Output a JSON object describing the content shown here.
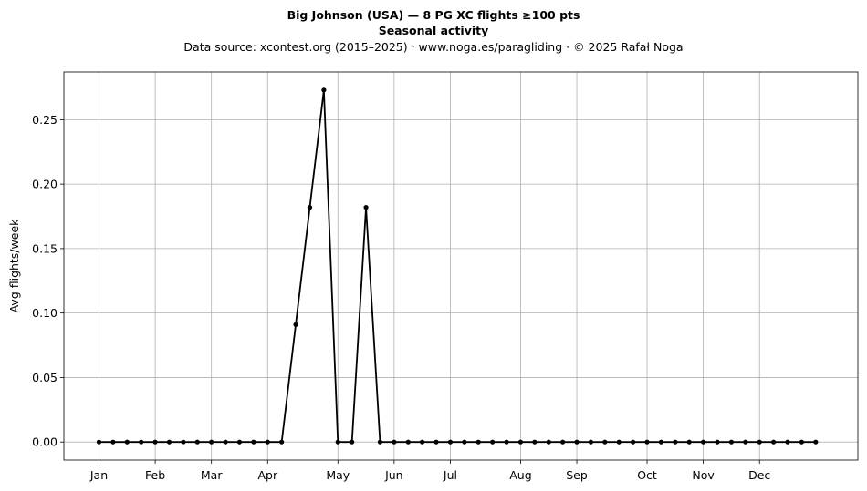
{
  "chart_data": {
    "type": "line",
    "title": "Big Johnson (USA)  —  8 PG XC flights ≥100 pts",
    "subtitle": "Seasonal activity",
    "source_line": "Data source: xcontest.org (2015–2025)  ·  www.noga.es/paragliding  ·  © 2025 Rafał Noga",
    "xlabel": "",
    "ylabel": "Avg flights/week",
    "xlim": [
      -2.5,
      54
    ],
    "ylim": [
      -0.014,
      0.287
    ],
    "grid": true,
    "x_ticks": [
      {
        "label": "Jan",
        "x": 0
      },
      {
        "label": "Feb",
        "x": 4
      },
      {
        "label": "Mar",
        "x": 8
      },
      {
        "label": "Apr",
        "x": 12
      },
      {
        "label": "May",
        "x": 17
      },
      {
        "label": "Jun",
        "x": 21
      },
      {
        "label": "Jul",
        "x": 25
      },
      {
        "label": "Aug",
        "x": 30
      },
      {
        "label": "Sep",
        "x": 34
      },
      {
        "label": "Oct",
        "x": 39
      },
      {
        "label": "Nov",
        "x": 43
      },
      {
        "label": "Dec",
        "x": 47
      }
    ],
    "y_ticks": [
      0,
      0.05,
      0.1,
      0.15,
      0.2,
      0.25
    ],
    "y_tick_labels": [
      "0.00",
      "0.05",
      "0.10",
      "0.15",
      "0.20",
      "0.25"
    ],
    "series": [
      {
        "color": "#000000",
        "x": [
          0,
          1,
          2,
          3,
          4,
          5,
          6,
          7,
          8,
          9,
          10,
          11,
          12,
          13,
          14,
          15,
          16,
          17,
          18,
          19,
          20,
          21,
          22,
          23,
          24,
          25,
          26,
          27,
          28,
          29,
          30,
          31,
          32,
          33,
          34,
          35,
          36,
          37,
          38,
          39,
          40,
          41,
          42,
          43,
          44,
          45,
          46,
          47,
          48,
          49,
          50,
          51
        ],
        "y": [
          0,
          0,
          0,
          0,
          0,
          0,
          0,
          0,
          0,
          0,
          0,
          0,
          0,
          0,
          0.091,
          0.182,
          0.273,
          0,
          0,
          0.182,
          0,
          0,
          0,
          0,
          0,
          0,
          0,
          0,
          0,
          0,
          0,
          0,
          0,
          0,
          0,
          0,
          0,
          0,
          0,
          0,
          0,
          0,
          0,
          0,
          0,
          0,
          0,
          0,
          0,
          0,
          0,
          0
        ]
      }
    ]
  }
}
